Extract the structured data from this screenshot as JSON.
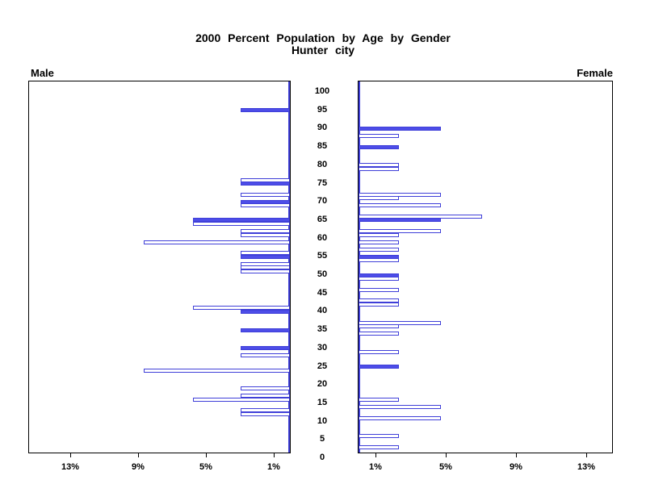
{
  "title": {
    "line1": "2000 Percent Population by Age by Gender",
    "line2": "Hunter city"
  },
  "panel_labels": {
    "male": "Male",
    "female": "Female"
  },
  "colors": {
    "bar_fill": "#4d4de8",
    "bar_outline": "#3f3fd8",
    "frame": "#000000",
    "text": "#000000"
  },
  "chart_data": {
    "type": "bar",
    "variant": "population-pyramid",
    "title": "2000 Percent Population by Age by Gender",
    "subtitle": "Hunter city",
    "age_axis": {
      "min": 0,
      "max": 100,
      "step": 5,
      "labels": [
        "0",
        "5",
        "10",
        "15",
        "20",
        "25",
        "30",
        "35",
        "40",
        "45",
        "50",
        "55",
        "60",
        "65",
        "70",
        "75",
        "80",
        "85",
        "90",
        "95",
        "100"
      ]
    },
    "pct_axis": {
      "tick_values": [
        1,
        5,
        9,
        13
      ],
      "male_tick_labels": [
        "13%",
        "9%",
        "5%",
        "1%"
      ],
      "female_tick_labels": [
        "1%",
        "5%",
        "9%",
        "13%"
      ],
      "max_pct": 15.5
    },
    "legend": {
      "filled_meaning": "solid blue bar",
      "hollow_meaning": "outlined bar"
    },
    "series": [
      {
        "name": "Male",
        "side": "left",
        "points": [
          {
            "age": 95,
            "pct": 2.9,
            "filled": true
          },
          {
            "age": 76,
            "pct": 2.9,
            "filled": false
          },
          {
            "age": 75,
            "pct": 2.9,
            "filled": true
          },
          {
            "age": 72,
            "pct": 2.9,
            "filled": false
          },
          {
            "age": 70,
            "pct": 2.9,
            "filled": true
          },
          {
            "age": 69,
            "pct": 2.9,
            "filled": false
          },
          {
            "age": 65,
            "pct": 5.7,
            "filled": true
          },
          {
            "age": 64,
            "pct": 5.7,
            "filled": false
          },
          {
            "age": 62,
            "pct": 2.9,
            "filled": false
          },
          {
            "age": 61,
            "pct": 2.9,
            "filled": false
          },
          {
            "age": 59,
            "pct": 8.6,
            "filled": false
          },
          {
            "age": 56,
            "pct": 2.9,
            "filled": false
          },
          {
            "age": 55,
            "pct": 2.9,
            "filled": true
          },
          {
            "age": 53,
            "pct": 2.9,
            "filled": false
          },
          {
            "age": 52,
            "pct": 2.9,
            "filled": false
          },
          {
            "age": 51,
            "pct": 2.9,
            "filled": false
          },
          {
            "age": 41,
            "pct": 5.7,
            "filled": false
          },
          {
            "age": 40,
            "pct": 2.9,
            "filled": true
          },
          {
            "age": 35,
            "pct": 2.9,
            "filled": true
          },
          {
            "age": 30,
            "pct": 2.9,
            "filled": true
          },
          {
            "age": 28,
            "pct": 2.9,
            "filled": false
          },
          {
            "age": 24,
            "pct": 8.6,
            "filled": false
          },
          {
            "age": 19,
            "pct": 2.9,
            "filled": false
          },
          {
            "age": 17,
            "pct": 2.9,
            "filled": false
          },
          {
            "age": 16,
            "pct": 5.7,
            "filled": false
          },
          {
            "age": 13,
            "pct": 2.9,
            "filled": false
          },
          {
            "age": 12,
            "pct": 2.9,
            "filled": false
          }
        ]
      },
      {
        "name": "Female",
        "side": "right",
        "points": [
          {
            "age": 90,
            "pct": 4.7,
            "filled": true
          },
          {
            "age": 88,
            "pct": 2.3,
            "filled": false
          },
          {
            "age": 85,
            "pct": 2.3,
            "filled": true
          },
          {
            "age": 80,
            "pct": 2.3,
            "filled": false
          },
          {
            "age": 79,
            "pct": 2.3,
            "filled": false
          },
          {
            "age": 72,
            "pct": 4.7,
            "filled": false
          },
          {
            "age": 71,
            "pct": 2.3,
            "filled": false
          },
          {
            "age": 69,
            "pct": 4.7,
            "filled": false
          },
          {
            "age": 66,
            "pct": 7.0,
            "filled": false
          },
          {
            "age": 65,
            "pct": 4.7,
            "filled": true
          },
          {
            "age": 62,
            "pct": 4.7,
            "filled": false
          },
          {
            "age": 61,
            "pct": 2.3,
            "filled": false
          },
          {
            "age": 59,
            "pct": 2.3,
            "filled": false
          },
          {
            "age": 57,
            "pct": 2.3,
            "filled": false
          },
          {
            "age": 55,
            "pct": 2.3,
            "filled": true
          },
          {
            "age": 54,
            "pct": 2.3,
            "filled": false
          },
          {
            "age": 50,
            "pct": 2.3,
            "filled": true
          },
          {
            "age": 49,
            "pct": 2.3,
            "filled": false
          },
          {
            "age": 46,
            "pct": 2.3,
            "filled": false
          },
          {
            "age": 43,
            "pct": 2.3,
            "filled": false
          },
          {
            "age": 42,
            "pct": 2.3,
            "filled": false
          },
          {
            "age": 37,
            "pct": 4.7,
            "filled": false
          },
          {
            "age": 36,
            "pct": 2.3,
            "filled": false
          },
          {
            "age": 34,
            "pct": 2.3,
            "filled": false
          },
          {
            "age": 29,
            "pct": 2.3,
            "filled": false
          },
          {
            "age": 25,
            "pct": 2.3,
            "filled": true
          },
          {
            "age": 16,
            "pct": 2.3,
            "filled": false
          },
          {
            "age": 14,
            "pct": 4.7,
            "filled": false
          },
          {
            "age": 11,
            "pct": 4.7,
            "filled": false
          },
          {
            "age": 6,
            "pct": 2.3,
            "filled": false
          },
          {
            "age": 3,
            "pct": 2.3,
            "filled": false
          }
        ]
      }
    ]
  }
}
